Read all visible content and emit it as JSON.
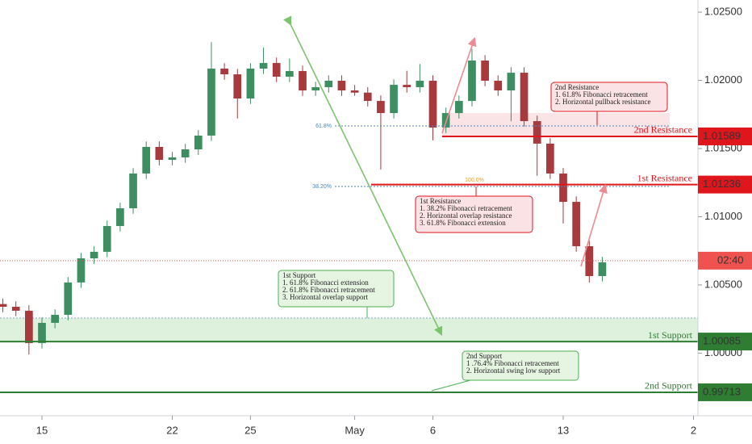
{
  "chart_data": {
    "type": "candlestick",
    "up_color": "#3d8f62",
    "down_color": "#a8393c",
    "x": [
      -1.5,
      -1,
      -0.5,
      0,
      0.5,
      1,
      1.5,
      2,
      2.5,
      3,
      3.5,
      4,
      4.5,
      5,
      5.5,
      6,
      6.5,
      7,
      7.5,
      8,
      8.5,
      9,
      9.5,
      10,
      10.5,
      11,
      11.5,
      12,
      12.5,
      13,
      13.5,
      14,
      14.5,
      15,
      15.5,
      16,
      16.5,
      17,
      17.5,
      18,
      18.5,
      19,
      19.5,
      20,
      20.5,
      21,
      21.5
    ],
    "open": [
      1.0036,
      1.0034,
      1.00311,
      1.00074,
      1.00222,
      1.00281,
      1.00518,
      1.00695,
      1.00743,
      1.00932,
      1.01062,
      1.01317,
      1.01512,
      1.01417,
      1.01435,
      1.01494,
      1.01595,
      1.02086,
      1.02044,
      1.01867,
      1.02086,
      1.02127,
      1.02027,
      1.02068,
      1.01926,
      1.0195,
      1.01997,
      1.01926,
      1.0191,
      1.01849,
      1.0176,
      1.01967,
      1.0195,
      1.01997,
      1.01654,
      1.0176,
      1.01849,
      1.02145,
      1.01997,
      1.01926,
      1.02056,
      1.01701,
      1.01536,
      1.01317,
      1.01109,
      1.00784,
      1.00565
    ],
    "high": [
      1.004,
      1.0038,
      1.00351,
      1.00262,
      1.00321,
      1.00558,
      1.00735,
      1.00783,
      1.00972,
      1.01102,
      1.01357,
      1.01552,
      1.01552,
      1.01475,
      1.01534,
      1.01635,
      1.0228,
      1.02126,
      1.02084,
      1.02126,
      1.0224,
      1.02167,
      1.0216,
      1.02108,
      1.0199,
      1.02037,
      1.02037,
      1.01966,
      1.0195,
      1.01889,
      1.02007,
      1.0207,
      1.0212,
      1.02037,
      1.018,
      1.01889,
      1.0223,
      1.02185,
      1.02037,
      1.02096,
      1.02096,
      1.01741,
      1.01576,
      1.01357,
      1.01149,
      1.00824,
      1.00706
    ],
    "low": [
      1.003,
      1.00271,
      0.9999,
      1.00034,
      1.00182,
      1.00241,
      1.00478,
      1.00655,
      1.00703,
      1.00892,
      1.01022,
      1.01277,
      1.01377,
      1.01377,
      1.01395,
      1.01454,
      1.01555,
      1.02004,
      1.0172,
      1.01827,
      1.02047,
      1.01987,
      1.01987,
      1.01886,
      1.01886,
      1.0191,
      1.01886,
      1.01886,
      1.01809,
      1.01346,
      1.0172,
      1.0191,
      1.0191,
      1.0156,
      1.01614,
      1.0172,
      1.01809,
      1.01957,
      1.01886,
      1.017,
      1.01661,
      1.013,
      1.01277,
      1.0095,
      1.00744,
      1.00518,
      1.00525
    ],
    "close": [
      1.0034,
      1.00311,
      1.00074,
      1.00222,
      1.00281,
      1.00518,
      1.00695,
      1.00743,
      1.00932,
      1.01062,
      1.01317,
      1.01512,
      1.01417,
      1.01435,
      1.01494,
      1.01595,
      1.02086,
      1.02044,
      1.01867,
      1.02086,
      1.02127,
      1.02027,
      1.02068,
      1.01926,
      1.0195,
      1.01997,
      1.01926,
      1.0191,
      1.01849,
      1.0176,
      1.01967,
      1.0195,
      1.01997,
      1.01654,
      1.0176,
      1.01849,
      1.02145,
      1.01997,
      1.01926,
      1.02056,
      1.01701,
      1.01536,
      1.01317,
      1.01109,
      1.00784,
      1.00565,
      1.00666
    ],
    "xlim": [
      -1.61,
      25.17
    ],
    "xticks": [
      {
        "value": 0,
        "label": "15"
      },
      {
        "value": 5,
        "label": "22"
      },
      {
        "value": 8,
        "label": "25"
      },
      {
        "value": 12,
        "label": "May"
      },
      {
        "value": 15,
        "label": "6"
      },
      {
        "value": 20,
        "label": "13"
      },
      {
        "value": 25,
        "label": "2"
      }
    ],
    "ylim": [
      0.99541,
      1.02589
    ],
    "yticks": [
      {
        "value": 1.025,
        "label": "1.02500"
      },
      {
        "value": 1.02,
        "label": "1.02000"
      },
      {
        "value": 1.015,
        "label": "1.01500"
      },
      {
        "value": 1.01,
        "label": "1.01000"
      },
      {
        "value": 1.005,
        "label": "1.00500"
      },
      {
        "value": 1.0,
        "label": "1.00000"
      }
    ],
    "zones": [
      {
        "color": "#f9dfe2",
        "range": [
          1.01589,
          1.0176
        ]
      },
      {
        "color": "#d8eed6",
        "range": [
          1.00085,
          1.00257
        ]
      }
    ],
    "levels": [
      {
        "name": "2nd Resistance",
        "value": 1.01589,
        "color": "#e0161d"
      },
      {
        "name": "1st Resistance",
        "value": 1.01236,
        "color": "#e0161d"
      },
      {
        "name": "1st Support",
        "value": 1.00085,
        "color": "#2e7d32"
      },
      {
        "name": "2nd Support",
        "value": 0.99713,
        "color": "#2e7d32"
      }
    ],
    "fib_levels": [
      {
        "label": "61.8%",
        "value": 1.01666,
        "color": "#4a86c8"
      },
      {
        "label": "38.20%",
        "value": 1.01222,
        "color": "#4a86c8"
      },
      {
        "label": "100.0%",
        "value": 1.01257,
        "color": "#f0a030"
      }
    ],
    "current_price": {
      "value": 1.00678,
      "label": "02:40",
      "color": "#ef5350"
    },
    "notes": [
      {
        "title": "2nd Resistance",
        "items": [
          "1. 61.8% Fibonacci retracement",
          "2. Horizontal pullback resistance"
        ],
        "color": "#e0161d"
      },
      {
        "title": "1st Resistance",
        "items": [
          "1. 38.2% Fibonacci retracement",
          "2. Horizontal overlap resistance",
          "3. 61.8% Fibonacci extension"
        ],
        "color": "#e0161d"
      },
      {
        "title": "1st Support",
        "items": [
          "1. 61.8% Fibonacci extension",
          "2. 61.8% Fibonacci retracement",
          "3. Horizontal overlap support"
        ],
        "color": "#4caf50"
      },
      {
        "title": "2nd Support",
        "items": [
          "1 .76.4% Fibonacci retracement",
          "2. Horizontal swing low support"
        ],
        "color": "#4caf50"
      }
    ]
  }
}
